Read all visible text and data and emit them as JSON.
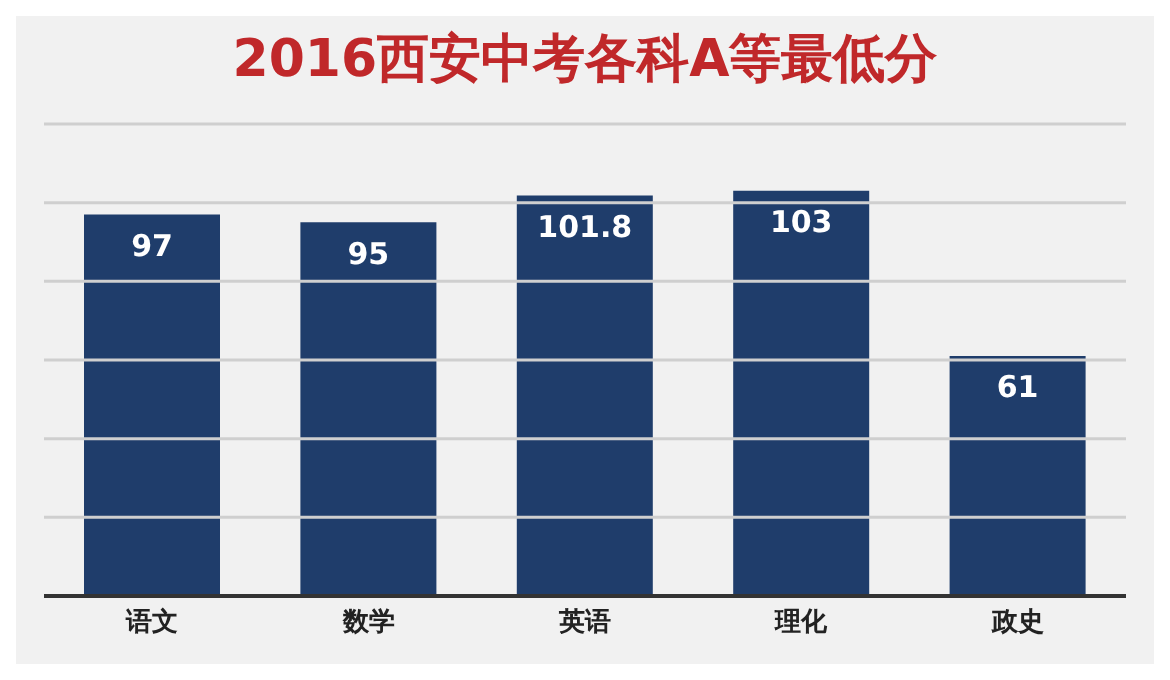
{
  "chart_data": {
    "type": "bar",
    "title": "2016西安中考各科A等最低分",
    "categories": [
      "语文",
      "数学",
      "英语",
      "理化",
      "政史"
    ],
    "values": [
      97,
      95,
      101.8,
      103,
      61
    ],
    "color": "#1f3d6b",
    "ylim": [
      0,
      120
    ],
    "yticks": [
      {
        "value": 0,
        "label": null
      },
      {
        "value": 20,
        "label": null
      },
      {
        "value": 40,
        "label": null
      },
      {
        "value": 60,
        "label": null
      },
      {
        "value": 80,
        "label": null
      },
      {
        "value": 100,
        "label": null
      },
      {
        "value": 120,
        "label": null
      }
    ],
    "grid": "y",
    "data_labels": true,
    "tick_labels": "x"
  }
}
